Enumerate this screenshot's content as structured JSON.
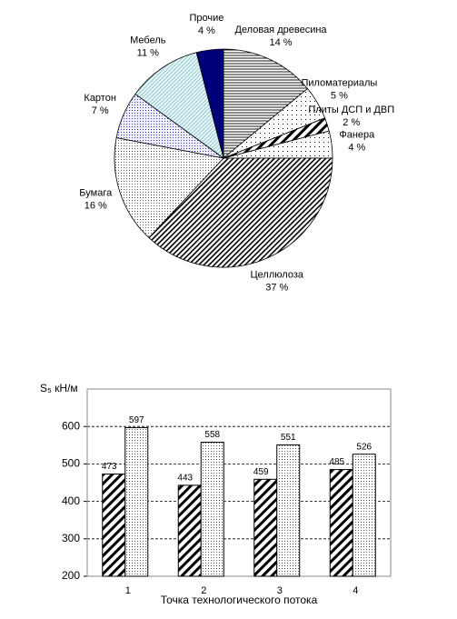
{
  "chart_data": [
    {
      "type": "pie",
      "categories": [
        "Деловая древесина",
        "Пиломатериалы",
        "Плиты ДСП и ДВП",
        "Фанера",
        "Целлюлоза",
        "Бумага",
        "Картон",
        "Мебель",
        "Прочие"
      ],
      "values": [
        14,
        5,
        2,
        4,
        37,
        16,
        7,
        11,
        4
      ],
      "value_labels": [
        "14 %",
        "5 %",
        "2 %",
        "4 %",
        "37 %",
        "16 %",
        "7 %",
        "11 %",
        "4 %"
      ],
      "patterns": [
        "hlines",
        "dots-sparse",
        "diag-thick",
        "dots-sparse",
        "diag-dense",
        "dots-fine",
        "dots-blue",
        "hatch-cyan",
        "solid-navy"
      ]
    },
    {
      "type": "bar",
      "y_label": "S₅ кН/м",
      "x_label": "Точка технологического потока",
      "categories": [
        "1",
        "2",
        "3",
        "4"
      ],
      "series": [
        {
          "values": [
            473,
            443,
            459,
            485
          ],
          "pattern": "diag-thick"
        },
        {
          "values": [
            597,
            558,
            551,
            526
          ],
          "pattern": "dots-fine"
        }
      ],
      "ylim": [
        200,
        700
      ],
      "yticks": [
        200,
        300,
        400,
        500,
        600
      ],
      "grid": true
    }
  ]
}
